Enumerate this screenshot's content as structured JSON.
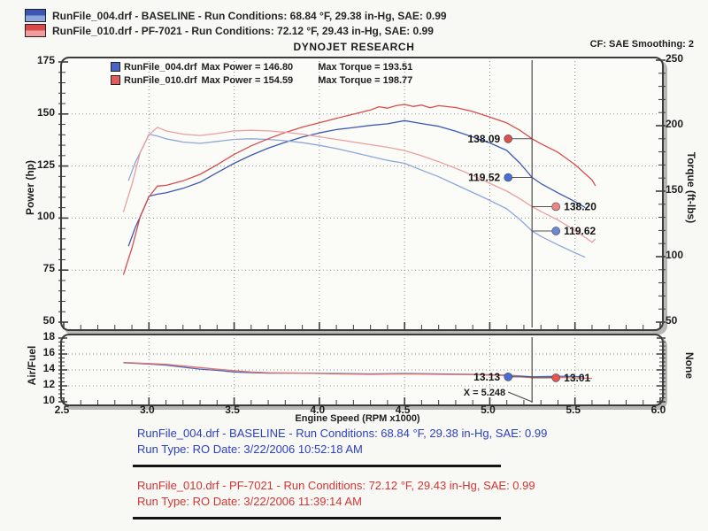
{
  "header": {
    "title": "DYNOJET RESEARCH",
    "cf": "CF: SAE  Smoothing: 2",
    "runs": [
      {
        "text": "RunFile_004.drf - BASELINE  -  Run Conditions: 68.84 °F, 29.38 in-Hg, SAE: 0.99",
        "color_dark": "#3b57b4",
        "color_light": "#8ea6de"
      },
      {
        "text": "RunFile_010.drf - PF-7021  -  Run Conditions: 72.12 °F, 29.43 in-Hg, SAE: 0.99",
        "color_dark": "#d84a4a",
        "color_light": "#f29c9c"
      }
    ]
  },
  "inner_legend": [
    {
      "file": "RunFile_004.drf",
      "power": "Max Power = 146.80",
      "torque": "Max Torque = 193.51",
      "color": "#4a64c8"
    },
    {
      "file": "RunFile_010.drf",
      "power": "Max Power = 154.59",
      "torque": "Max Torque = 198.77",
      "color": "#e25c5c"
    }
  ],
  "axes": {
    "power_label": "Power (hp)",
    "torque_label": "Torque (ft-lbs)",
    "af_label": "Air/Fuel",
    "none_label": "None",
    "x_title": "Engine Speed (RPM x1000)"
  },
  "footer": {
    "runs": [
      {
        "line1": "RunFile_004.drf - BASELINE  -  Run Conditions: 68.84 °F, 29.38 in-Hg, SAE: 0.99",
        "line2": "Run Type: RO  Date: 3/22/2006 10:52:18 AM",
        "color": "#2b3fc4"
      },
      {
        "line1": "RunFile_010.drf - PF-7021  -  Run Conditions: 72.12 °F, 29.43 in-Hg, SAE: 0.99",
        "line2": "Run Type: RO  Date: 3/22/2006 11:39:14 AM",
        "color": "#d23535"
      }
    ]
  },
  "chart_data": [
    {
      "type": "line",
      "title": "DYNOJET RESEARCH",
      "xlabel": "Engine Speed (RPM x1000)",
      "x_range": [
        2.5,
        6.0
      ],
      "x_ticks": [
        2.5,
        3.0,
        3.5,
        4.0,
        4.5,
        5.0,
        5.5,
        6.0
      ],
      "left_axis": {
        "label": "Power (hp)",
        "range": [
          50,
          175
        ],
        "ticks": [
          175,
          150,
          125,
          100,
          75,
          50
        ],
        "grid": [
          150,
          125,
          100,
          75
        ]
      },
      "right_axis": {
        "label": "Torque (ft-lbs)",
        "range": [
          50,
          250
        ],
        "ticks": [
          250,
          200,
          150,
          100,
          50
        ]
      },
      "legend": [
        {
          "name": "RunFile_004.drf",
          "max_power": 146.8,
          "max_torque": 193.51
        },
        {
          "name": "RunFile_010.drf",
          "max_power": 154.59,
          "max_torque": 198.77
        }
      ],
      "cursor_x": 5.248,
      "series": [
        {
          "name": "RunFile_004.drf Power (hp)",
          "axis": "left",
          "color": "#3c59b5",
          "points": [
            [
              2.88,
              86.5
            ],
            [
              2.92,
              95.5
            ],
            [
              2.97,
              104.5
            ],
            [
              3.0,
              110.5
            ],
            [
              3.05,
              111.5
            ],
            [
              3.1,
              112.1
            ],
            [
              3.2,
              114.3
            ],
            [
              3.3,
              117.2
            ],
            [
              3.4,
              121.8
            ],
            [
              3.5,
              126.3
            ],
            [
              3.6,
              130.2
            ],
            [
              3.7,
              133.6
            ],
            [
              3.8,
              136.4
            ],
            [
              3.9,
              138.9
            ],
            [
              4.0,
              140.9
            ],
            [
              4.1,
              142.5
            ],
            [
              4.2,
              143.5
            ],
            [
              4.3,
              144.5
            ],
            [
              4.4,
              145.3
            ],
            [
              4.5,
              146.8
            ],
            [
              4.6,
              145.4
            ],
            [
              4.7,
              144.1
            ],
            [
              4.8,
              141.7
            ],
            [
              4.9,
              139.0
            ],
            [
              5.0,
              136.1
            ],
            [
              5.1,
              132.5
            ],
            [
              5.18,
              126.1
            ],
            [
              5.248,
              119.5
            ],
            [
              5.3,
              116.6
            ],
            [
              5.4,
              112.1
            ],
            [
              5.5,
              107.9
            ],
            [
              5.56,
              105.0
            ]
          ]
        },
        {
          "name": "RunFile_004.drf Torque (ft-lbs)",
          "axis": "right",
          "color": "#8fa6da",
          "points": [
            [
              2.88,
              158
            ],
            [
              2.92,
              172
            ],
            [
              2.97,
              185
            ],
            [
              3.0,
              193.5
            ],
            [
              3.05,
              192
            ],
            [
              3.1,
              190
            ],
            [
              3.2,
              187.5
            ],
            [
              3.3,
              186.5
            ],
            [
              3.4,
              188
            ],
            [
              3.5,
              189.5
            ],
            [
              3.6,
              190
            ],
            [
              3.7,
              189.5
            ],
            [
              3.8,
              188.5
            ],
            [
              3.9,
              187
            ],
            [
              4.0,
              185
            ],
            [
              4.1,
              182.5
            ],
            [
              4.2,
              179.5
            ],
            [
              4.3,
              176.5
            ],
            [
              4.4,
              173.5
            ],
            [
              4.5,
              171.3
            ],
            [
              4.6,
              166
            ],
            [
              4.7,
              161
            ],
            [
              4.8,
              155
            ],
            [
              4.9,
              149
            ],
            [
              5.0,
              143
            ],
            [
              5.1,
              136.5
            ],
            [
              5.18,
              128
            ],
            [
              5.248,
              119.6
            ],
            [
              5.3,
              115.5
            ],
            [
              5.4,
              109
            ],
            [
              5.5,
              103
            ],
            [
              5.56,
              99.5
            ]
          ]
        },
        {
          "name": "RunFile_010.drf Power (hp)",
          "axis": "left",
          "color": "#d94c4c",
          "points": [
            [
              2.85,
              72.7
            ],
            [
              2.9,
              85.5
            ],
            [
              2.95,
              101.0
            ],
            [
              3.0,
              110.2
            ],
            [
              3.05,
              115.4
            ],
            [
              3.1,
              115.7
            ],
            [
              3.2,
              117.9
            ],
            [
              3.3,
              121.0
            ],
            [
              3.4,
              125.6
            ],
            [
              3.5,
              130.6
            ],
            [
              3.6,
              134.7
            ],
            [
              3.7,
              138.1
            ],
            [
              3.8,
              141.1
            ],
            [
              3.9,
              143.7
            ],
            [
              4.0,
              145.8
            ],
            [
              4.1,
              147.9
            ],
            [
              4.2,
              149.9
            ],
            [
              4.3,
              151.9
            ],
            [
              4.35,
              153.5
            ],
            [
              4.4,
              152.8
            ],
            [
              4.45,
              154.0
            ],
            [
              4.5,
              154.6
            ],
            [
              4.55,
              153.6
            ],
            [
              4.6,
              154.3
            ],
            [
              4.65,
              153.0
            ],
            [
              4.7,
              154.0
            ],
            [
              4.8,
              153.1
            ],
            [
              4.9,
              151.2
            ],
            [
              5.0,
              148.5
            ],
            [
              5.1,
              145.7
            ],
            [
              5.18,
              142.0
            ],
            [
              5.248,
              138.1
            ],
            [
              5.3,
              135.7
            ],
            [
              5.4,
              131.6
            ],
            [
              5.5,
              125.7
            ],
            [
              5.6,
              118.3
            ],
            [
              5.62,
              115.5
            ]
          ]
        },
        {
          "name": "RunFile_010.drf Torque (ft-lbs)",
          "axis": "right",
          "color": "#eb9f9f",
          "points": [
            [
              2.85,
              134
            ],
            [
              2.9,
              155
            ],
            [
              2.95,
              180
            ],
            [
              3.0,
              193
            ],
            [
              3.05,
              198.8
            ],
            [
              3.1,
              196
            ],
            [
              3.2,
              193.5
            ],
            [
              3.3,
              192.5
            ],
            [
              3.4,
              194
            ],
            [
              3.5,
              196
            ],
            [
              3.6,
              196.5
            ],
            [
              3.7,
              196
            ],
            [
              3.8,
              195
            ],
            [
              3.9,
              193.5
            ],
            [
              4.0,
              191.5
            ],
            [
              4.1,
              189.5
            ],
            [
              4.2,
              187.5
            ],
            [
              4.3,
              185.5
            ],
            [
              4.4,
              183.5
            ],
            [
              4.5,
              181
            ],
            [
              4.6,
              177
            ],
            [
              4.7,
              172.5
            ],
            [
              4.8,
              167.5
            ],
            [
              4.9,
              162
            ],
            [
              5.0,
              156
            ],
            [
              5.1,
              150
            ],
            [
              5.18,
              144
            ],
            [
              5.248,
              138.2
            ],
            [
              5.3,
              134.5
            ],
            [
              5.4,
              128
            ],
            [
              5.5,
              120
            ],
            [
              5.6,
              111
            ],
            [
              5.62,
              113.5
            ]
          ]
        }
      ],
      "cursor_labels": [
        {
          "text": "138.09",
          "value": 138.09,
          "axis": "left",
          "side": "left",
          "color": "#e04f4f"
        },
        {
          "text": "119.52",
          "value": 119.52,
          "axis": "left",
          "side": "left",
          "color": "#4a6cd6"
        },
        {
          "text": "138.20",
          "value": 138.2,
          "axis": "right",
          "side": "right",
          "color": "#ee8585"
        },
        {
          "text": "119.62",
          "value": 119.62,
          "axis": "right",
          "side": "right",
          "color": "#6a87d8"
        }
      ]
    },
    {
      "type": "line",
      "y_axis": {
        "label": "Air/Fuel",
        "range": [
          10,
          18
        ],
        "ticks": [
          18,
          16,
          14,
          12,
          10
        ],
        "grid": [
          16,
          14,
          12
        ]
      },
      "right_label": "None",
      "x_range": [
        2.5,
        6.0
      ],
      "cursor_x": 5.248,
      "cursor_caption": "X = 5.248",
      "series": [
        {
          "name": "RunFile_004.drf Air/Fuel",
          "color": "#4a66bc",
          "points": [
            [
              2.85,
              14.9
            ],
            [
              3.0,
              14.75
            ],
            [
              3.1,
              14.6
            ],
            [
              3.2,
              14.35
            ],
            [
              3.3,
              14.1
            ],
            [
              3.4,
              13.95
            ],
            [
              3.5,
              13.75
            ],
            [
              3.6,
              13.65
            ],
            [
              3.7,
              13.6
            ],
            [
              3.9,
              13.6
            ],
            [
              4.1,
              13.55
            ],
            [
              4.3,
              13.5
            ],
            [
              4.5,
              13.55
            ],
            [
              4.7,
              13.5
            ],
            [
              4.9,
              13.45
            ],
            [
              5.1,
              13.35
            ],
            [
              5.248,
              13.13
            ],
            [
              5.4,
              13.2
            ],
            [
              5.55,
              13.15
            ]
          ]
        },
        {
          "name": "RunFile_010.drf Air/Fuel",
          "color": "#e07070",
          "points": [
            [
              2.85,
              14.95
            ],
            [
              3.0,
              14.8
            ],
            [
              3.1,
              14.7
            ],
            [
              3.2,
              14.5
            ],
            [
              3.3,
              14.3
            ],
            [
              3.4,
              14.1
            ],
            [
              3.5,
              13.9
            ],
            [
              3.6,
              13.75
            ],
            [
              3.7,
              13.65
            ],
            [
              3.9,
              13.6
            ],
            [
              4.1,
              13.5
            ],
            [
              4.3,
              13.45
            ],
            [
              4.5,
              13.5
            ],
            [
              4.7,
              13.45
            ],
            [
              4.9,
              13.4
            ],
            [
              5.1,
              13.3
            ],
            [
              5.248,
              13.01
            ],
            [
              5.4,
              13.05
            ],
            [
              5.6,
              12.95
            ]
          ]
        }
      ],
      "cursor_labels": [
        {
          "text": "13.13",
          "value": 13.13,
          "side": "left",
          "color": "#4a6cd6"
        },
        {
          "text": "13.01",
          "value": 13.01,
          "side": "right",
          "color": "#e55555"
        }
      ]
    }
  ]
}
